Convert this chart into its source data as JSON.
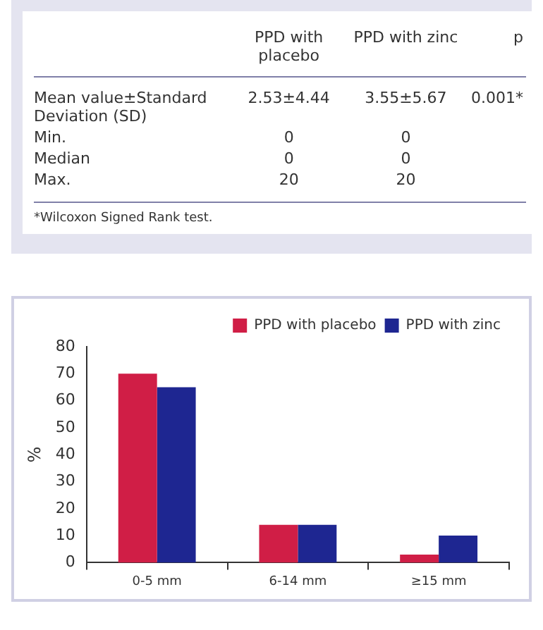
{
  "chart_data": [
    {
      "type": "other",
      "categories": [
        "PPD with placebo",
        "PPD with zinc",
        "p"
      ],
      "y_categories": [
        "Mean value±Standard Deviation (SD)",
        "Min.",
        "Median",
        "Max."
      ],
      "cell_labels": [
        [
          "2.53±4.44",
          "3.55±5.67",
          "0.001*"
        ],
        [
          "0",
          "0",
          null
        ],
        [
          "0",
          "0",
          null
        ],
        [
          "20",
          "20",
          null
        ]
      ],
      "annotations": [
        "*Wilcoxon Signed Rank test."
      ]
    },
    {
      "type": "bar",
      "categories": [
        "0-5 mm",
        "6-14 mm",
        "≥15 mm"
      ],
      "series": [
        {
          "name": "PPD with placebo",
          "color": "#d01e46",
          "values": [
            70,
            14,
            3
          ]
        },
        {
          "name": "PPD with zinc",
          "color": "#1e2691",
          "values": [
            65,
            14,
            10
          ]
        }
      ],
      "ylabel": "%",
      "ylim": [
        0,
        80
      ],
      "yticks": [
        0,
        10,
        20,
        30,
        40,
        50,
        60,
        70,
        80
      ],
      "grid": false,
      "legend": "top right"
    }
  ]
}
